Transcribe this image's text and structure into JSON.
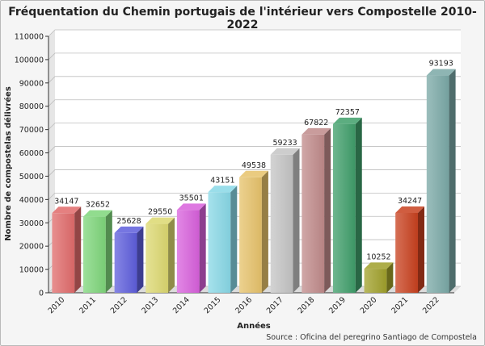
{
  "chart_data": {
    "type": "bar",
    "title": "Fréquentation du Chemin portugais de l'intérieur vers Compostelle 2010-2022",
    "xlabel": "Années",
    "ylabel": "Nombre de compostelas délivrées",
    "source": "Source : Oficina del peregrino Santiago de Compostela",
    "categories": [
      "2010",
      "2011",
      "2012",
      "2013",
      "2014",
      "2015",
      "2016",
      "2017",
      "2018",
      "2019",
      "2020",
      "2021",
      "2022"
    ],
    "values": [
      34147,
      32652,
      25628,
      29550,
      35501,
      43151,
      49538,
      59233,
      67822,
      72357,
      10252,
      34247,
      93193
    ],
    "ylim": [
      0,
      110000
    ],
    "ytick_step": 10000,
    "grid": true,
    "legend": "none",
    "bar_colors": [
      "#e06a6a",
      "#7ed67a",
      "#5e5edc",
      "#dcd870",
      "#d860dc",
      "#88d8e6",
      "#e6c26a",
      "#c4c4c4",
      "#c08a8a",
      "#3f9e6a",
      "#a0a02a",
      "#c8401e",
      "#7aa8a6"
    ]
  }
}
